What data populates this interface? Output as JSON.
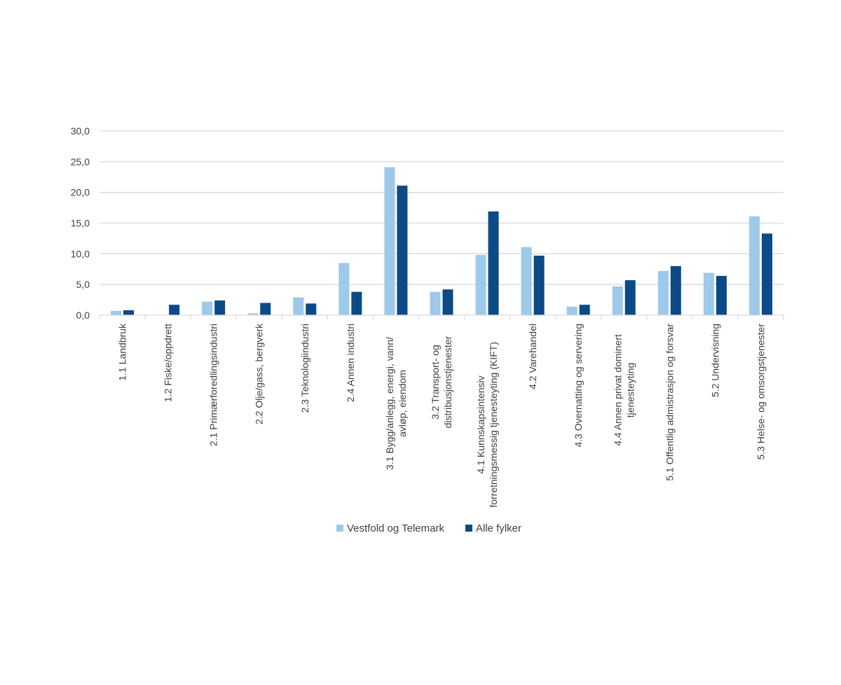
{
  "chart_data": {
    "type": "bar",
    "title": "",
    "xlabel": "",
    "ylabel": "",
    "ylim": [
      0,
      30
    ],
    "yticks": [
      "0,0",
      "5,0",
      "10,0",
      "15,0",
      "20,0",
      "25,0",
      "30,0"
    ],
    "grid": true,
    "legend_position": "bottom",
    "categories": [
      [
        "1.1 Landbruk"
      ],
      [
        "1.2 Fiske/oppdrett"
      ],
      [
        "2.1 Primærforedlingsindustri"
      ],
      [
        "2.2 Olje/gass, bergverk"
      ],
      [
        "2.3 Teknologiindustri"
      ],
      [
        "2.4 Annen industri"
      ],
      [
        "3.1 Bygg/anlegg, energi, vann/",
        "avløp, eiendom"
      ],
      [
        "3.2 Transport- og",
        "distribusjonstjenester"
      ],
      [
        "4.1 Kunnskapsintensiv",
        "forretningsmessig tjenesteyting (KIFT)"
      ],
      [
        "4.2 Varehandel"
      ],
      [
        "4.3 Overnatting og servering"
      ],
      [
        "4.4 Annen privat dominert",
        "tjenesteyting"
      ],
      [
        "5.1 Offentlig admistrasjon og forsvar"
      ],
      [
        "5.2 Undervisning"
      ],
      [
        "5.3 Helse- og omsorgstjenester"
      ]
    ],
    "series": [
      {
        "name": "Vestfold og Telemark",
        "color": "#9dc9ea",
        "values": [
          0.7,
          0.0,
          2.2,
          0.3,
          2.9,
          8.5,
          24.1,
          3.8,
          9.8,
          11.1,
          1.4,
          4.7,
          7.2,
          6.9,
          16.1
        ]
      },
      {
        "name": "Alle fylker",
        "color": "#0b4a86",
        "values": [
          0.8,
          1.7,
          2.4,
          2.0,
          1.9,
          3.8,
          21.1,
          4.2,
          16.9,
          9.7,
          1.7,
          5.7,
          8.0,
          6.4,
          13.3
        ]
      }
    ]
  }
}
